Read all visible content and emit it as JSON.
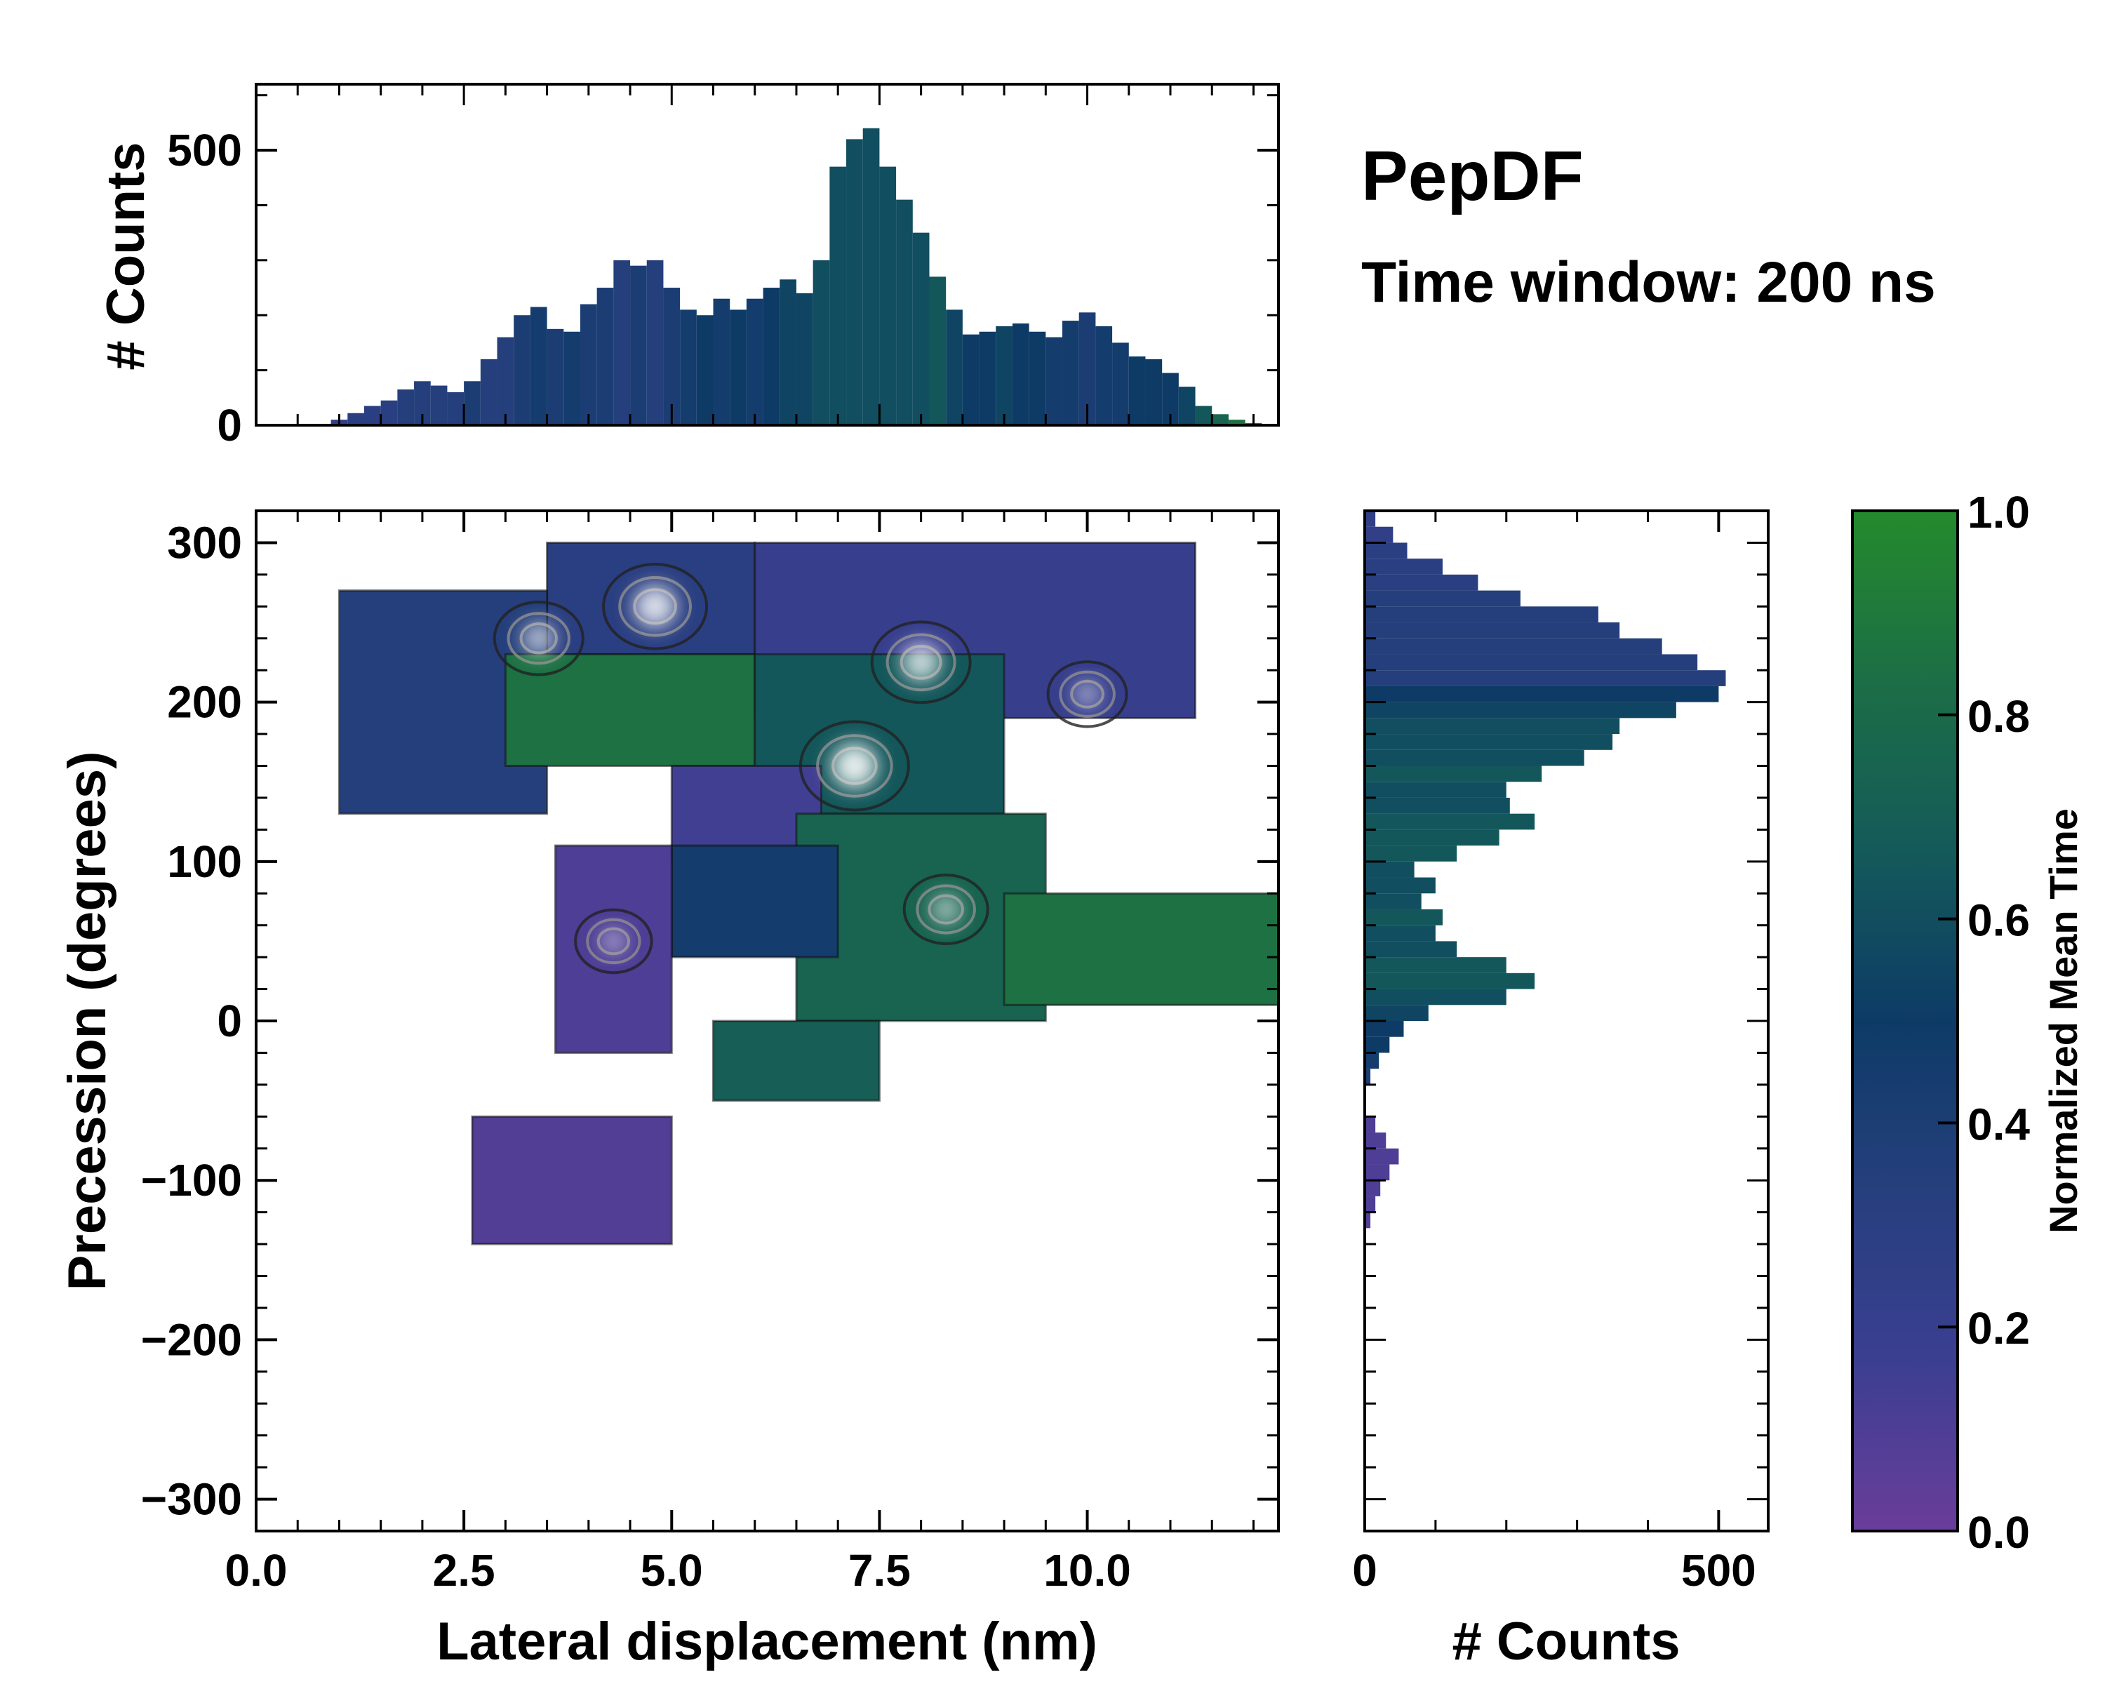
{
  "chart_data": [
    {
      "id": "joint",
      "type": "heatmap",
      "title": "PepDF",
      "subtitle": "Time window: 200 ns",
      "xlabel": "Lateral displacement (nm)",
      "ylabel": "Precession (degrees)",
      "xlim": [
        0.0,
        12.3
      ],
      "ylim": [
        -320,
        320
      ],
      "xticks": [
        0.0,
        2.5,
        5.0,
        7.5,
        10.0
      ],
      "xtick_labels": [
        "0.0",
        "2.5",
        "5.0",
        "7.5",
        "10.0"
      ],
      "yticks": [
        300,
        200,
        100,
        0,
        -100,
        -200,
        -300
      ],
      "ytick_labels": [
        "300",
        "200",
        "100",
        "0",
        "−100",
        "−200",
        "−300"
      ],
      "color_by": "Normalized Mean Time",
      "regions": [
        {
          "x": [
            3.5,
            6.0
          ],
          "y": [
            230,
            300
          ],
          "value": 0.3
        },
        {
          "x": [
            1.0,
            3.5
          ],
          "y": [
            130,
            270
          ],
          "value": 0.35
        },
        {
          "x": [
            6.0,
            11.3
          ],
          "y": [
            190,
            300
          ],
          "value": 0.2
        },
        {
          "x": [
            3.0,
            6.0
          ],
          "y": [
            160,
            230
          ],
          "value": 0.85
        },
        {
          "x": [
            6.0,
            9.0
          ],
          "y": [
            130,
            230
          ],
          "value": 0.65
        },
        {
          "x": [
            5.0,
            6.8
          ],
          "y": [
            100,
            160
          ],
          "value": 0.15
        },
        {
          "x": [
            6.5,
            9.5
          ],
          "y": [
            0,
            130
          ],
          "value": 0.75
        },
        {
          "x": [
            9.0,
            12.3
          ],
          "y": [
            10,
            80
          ],
          "value": 0.85
        },
        {
          "x": [
            5.0,
            7.0
          ],
          "y": [
            40,
            110
          ],
          "value": 0.45
        },
        {
          "x": [
            3.6,
            5.0
          ],
          "y": [
            -20,
            110
          ],
          "value": 0.1
        },
        {
          "x": [
            5.5,
            7.5
          ],
          "y": [
            -50,
            0
          ],
          "value": 0.7
        },
        {
          "x": [
            2.6,
            5.0
          ],
          "y": [
            -140,
            -60
          ],
          "value": 0.08
        }
      ],
      "density_peaks": [
        {
          "x": 4.8,
          "y": 260,
          "intensity": 0.9
        },
        {
          "x": 3.4,
          "y": 240,
          "intensity": 0.6
        },
        {
          "x": 7.2,
          "y": 160,
          "intensity": 1.0
        },
        {
          "x": 8.0,
          "y": 225,
          "intensity": 0.8
        },
        {
          "x": 8.3,
          "y": 70,
          "intensity": 0.5
        },
        {
          "x": 10.0,
          "y": 205,
          "intensity": 0.4
        },
        {
          "x": 4.3,
          "y": 50,
          "intensity": 0.35
        }
      ]
    },
    {
      "id": "top_marginal",
      "type": "bar",
      "ylabel": "# Counts",
      "xlim": [
        0.0,
        12.3
      ],
      "ylim": [
        0,
        620
      ],
      "yticks": [
        0,
        500
      ],
      "ytick_labels": [
        "0",
        "500"
      ],
      "x": [
        0.8,
        1.0,
        1.2,
        1.4,
        1.6,
        1.8,
        2.0,
        2.2,
        2.4,
        2.6,
        2.8,
        3.0,
        3.2,
        3.4,
        3.6,
        3.8,
        4.0,
        4.2,
        4.4,
        4.6,
        4.8,
        5.0,
        5.2,
        5.4,
        5.6,
        5.8,
        6.0,
        6.2,
        6.4,
        6.6,
        6.8,
        7.0,
        7.2,
        7.4,
        7.6,
        7.8,
        8.0,
        8.2,
        8.4,
        8.6,
        8.8,
        9.0,
        9.2,
        9.4,
        9.6,
        9.8,
        10.0,
        10.2,
        10.4,
        10.6,
        10.8,
        11.0,
        11.2,
        11.4,
        11.6,
        11.8,
        12.0
      ],
      "values": [
        2,
        10,
        22,
        35,
        45,
        65,
        80,
        72,
        60,
        80,
        120,
        160,
        200,
        215,
        175,
        170,
        220,
        250,
        300,
        290,
        300,
        250,
        210,
        200,
        230,
        210,
        230,
        250,
        265,
        240,
        300,
        470,
        520,
        540,
        470,
        410,
        350,
        270,
        210,
        165,
        170,
        180,
        185,
        170,
        160,
        190,
        205,
        180,
        150,
        125,
        120,
        95,
        70,
        35,
        20,
        10,
        4
      ],
      "colors": [
        0.25,
        0.25,
        0.3,
        0.3,
        0.3,
        0.35,
        0.35,
        0.35,
        0.35,
        0.4,
        0.35,
        0.35,
        0.4,
        0.45,
        0.4,
        0.45,
        0.4,
        0.4,
        0.35,
        0.4,
        0.35,
        0.4,
        0.45,
        0.5,
        0.45,
        0.5,
        0.45,
        0.5,
        0.55,
        0.55,
        0.6,
        0.6,
        0.6,
        0.6,
        0.6,
        0.6,
        0.6,
        0.65,
        0.55,
        0.5,
        0.5,
        0.55,
        0.5,
        0.5,
        0.45,
        0.45,
        0.4,
        0.45,
        0.45,
        0.5,
        0.5,
        0.5,
        0.55,
        0.65,
        0.75,
        0.85,
        0.9
      ]
    },
    {
      "id": "right_marginal",
      "type": "bar",
      "orientation": "horizontal",
      "xlabel": "# Counts",
      "xlim": [
        0,
        570
      ],
      "xticks": [
        0,
        500
      ],
      "xtick_labels": [
        "0",
        "500"
      ],
      "ylim": [
        -320,
        320
      ],
      "y": [
        -135,
        -125,
        -115,
        -105,
        -95,
        -85,
        -75,
        -65,
        -55,
        -45,
        -35,
        -25,
        -15,
        -5,
        5,
        15,
        25,
        35,
        45,
        55,
        65,
        75,
        85,
        95,
        105,
        115,
        125,
        135,
        145,
        155,
        165,
        175,
        185,
        195,
        205,
        215,
        225,
        235,
        245,
        255,
        265,
        275,
        285,
        295,
        305,
        315
      ],
      "values": [
        2,
        8,
        15,
        22,
        35,
        48,
        30,
        15,
        0,
        0,
        8,
        20,
        35,
        55,
        90,
        200,
        240,
        200,
        130,
        100,
        110,
        80,
        100,
        70,
        130,
        190,
        240,
        205,
        200,
        250,
        310,
        350,
        360,
        440,
        500,
        510,
        470,
        420,
        360,
        330,
        220,
        160,
        110,
        60,
        40,
        15
      ],
      "colors": [
        0.08,
        0.08,
        0.1,
        0.1,
        0.1,
        0.1,
        0.1,
        0.1,
        0.1,
        0.1,
        0.4,
        0.45,
        0.5,
        0.5,
        0.55,
        0.6,
        0.65,
        0.65,
        0.6,
        0.6,
        0.65,
        0.6,
        0.6,
        0.6,
        0.65,
        0.65,
        0.65,
        0.6,
        0.6,
        0.65,
        0.6,
        0.6,
        0.6,
        0.55,
        0.5,
        0.35,
        0.35,
        0.35,
        0.35,
        0.35,
        0.35,
        0.3,
        0.3,
        0.3,
        0.25,
        0.25
      ]
    },
    {
      "id": "colorbar",
      "type": "colorbar",
      "label": "Normalized Mean Time",
      "ylim": [
        0.0,
        1.0
      ],
      "ticks": [
        0.0,
        0.2,
        0.4,
        0.6,
        0.8,
        1.0
      ],
      "tick_labels": [
        "0.0",
        "0.2",
        "0.4",
        "0.6",
        "0.8",
        "1.0"
      ],
      "colormap": [
        "#6a3d9a",
        "#3b3f91",
        "#263f7d",
        "#0d3b66",
        "#145a5a",
        "#1c6e46",
        "#248a2c"
      ]
    }
  ]
}
